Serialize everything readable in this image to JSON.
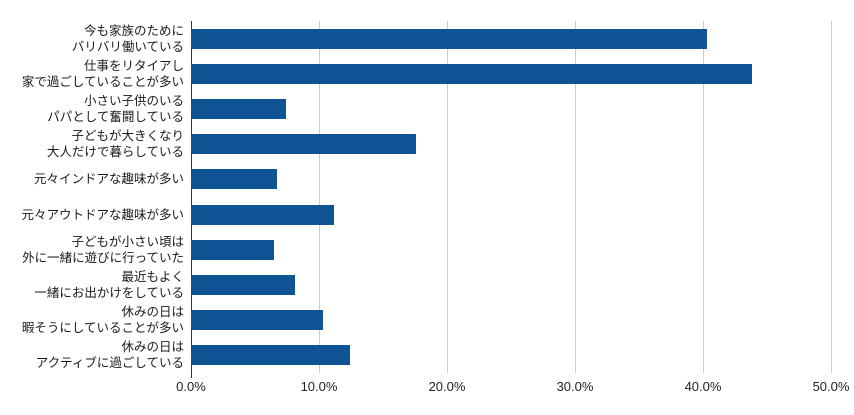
{
  "chart_data": {
    "type": "bar",
    "orientation": "horizontal",
    "title": "",
    "xlabel": "",
    "ylabel": "",
    "xlim": [
      0,
      50
    ],
    "grid": true,
    "legend": "none",
    "categories": [
      "今も家族のために\nバリバリ働いている",
      "仕事をリタイアし\n家で過ごしていることが多い",
      "小さい子供のいる\nパパとして奮闘している",
      "子どもが大きくなり\n大人だけで暮らしている",
      "元々インドアな趣味が多い",
      "元々アウトドアな趣味が多い",
      "子どもが小さい頃は\n外に一緒に遊びに行っていた",
      "最近もよく\n一緒にお出かけをしている",
      "休みの日は\n暇そうにしていることが多い",
      "休みの日は\nアクティブに過ごしている"
    ],
    "values": [
      40.3,
      43.8,
      7.4,
      17.6,
      6.7,
      11.2,
      6.5,
      8.1,
      10.3,
      12.4
    ],
    "value_unit": "%",
    "x_ticks": [
      {
        "label": "0.0%",
        "value": 0
      },
      {
        "label": "10.0%",
        "value": 10
      },
      {
        "label": "20.0%",
        "value": 20
      },
      {
        "label": "30.0%",
        "value": 30
      },
      {
        "label": "40.0%",
        "value": 40
      },
      {
        "label": "50.0%",
        "value": 50
      }
    ],
    "colors": {
      "bar": "#0e5394",
      "gridline": "#cccccc",
      "axis_line": "#333333",
      "label_text": "#1a1a1a",
      "tick_text": "#222222",
      "background": "#ffffff"
    }
  }
}
